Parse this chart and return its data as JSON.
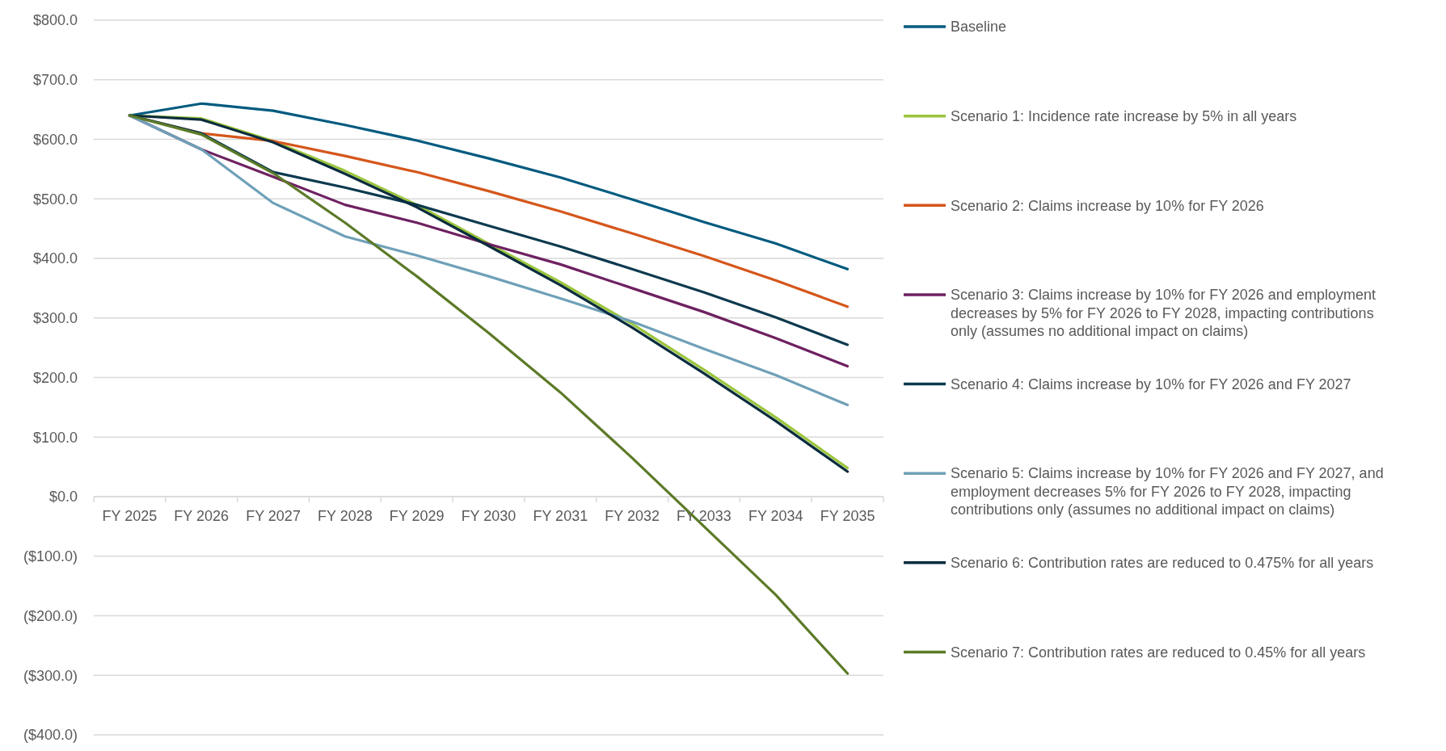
{
  "chart_data": {
    "type": "line",
    "categories": [
      "FY 2025",
      "FY 2026",
      "FY 2027",
      "FY 2028",
      "FY 2029",
      "FY 2030",
      "FY 2031",
      "FY 2032",
      "FY 2033",
      "FY 2034",
      "FY 2035"
    ],
    "series": [
      {
        "name": "Baseline",
        "color": "#005a7f",
        "values": [
          640,
          660,
          648,
          624,
          598,
          568,
          536,
          499,
          461,
          425,
          382
        ]
      },
      {
        "name": "Scenario 1: Incidence rate increase by 5% in all years",
        "color": "#9bc53d",
        "values": [
          640,
          635,
          597,
          547,
          490,
          425,
          360,
          290,
          213,
          133,
          48
        ]
      },
      {
        "name": "Scenario 2: Claims increase by 10% for FY 2026",
        "color": "#d5561b",
        "values": [
          640,
          610,
          597,
          572,
          545,
          513,
          479,
          442,
          404,
          363,
          319
        ]
      },
      {
        "name": "Scenario 3: Claims increase by 10% for FY 2026 and employment decreases by 5% for FY 2026 to FY 2028, impacting contributions only (assumes no additional impact on claims)",
        "color": "#6e2160",
        "values": [
          640,
          583,
          537,
          490,
          460,
          424,
          390,
          350,
          310,
          266,
          219
        ]
      },
      {
        "name": "Scenario 4: Claims increase by 10% for FY 2026 and FY 2027",
        "color": "#0d3a4f",
        "values": [
          640,
          610,
          545,
          519,
          490,
          455,
          420,
          382,
          343,
          301,
          255
        ]
      },
      {
        "name": "Scenario 5: Claims increase by 10% for FY 2026 and FY 2027, and employment decreases 5% for FY 2026 to FY 2028, impacting contributions only (assumes no additional impact on claims)",
        "color": "#6fa0b8",
        "values": [
          640,
          583,
          493,
          437,
          405,
          370,
          333,
          294,
          248,
          204,
          154
        ]
      },
      {
        "name": "Scenario 6: Contribution rates are reduced to 0.475% for all years",
        "color": "#0a2c3e",
        "values": [
          640,
          633,
          595,
          542,
          486,
          421,
          355,
          284,
          207,
          127,
          42
        ]
      },
      {
        "name": "Scenario 7: Contribution rates are reduced to 0.45% for all years",
        "color": "#5c7a27",
        "values": [
          640,
          608,
          543,
          460,
          370,
          275,
          175,
          65,
          -50,
          -165,
          -297
        ]
      }
    ],
    "ylim": [
      -400,
      800
    ],
    "yticks": [
      {
        "value": -400,
        "label": "($400.0)"
      },
      {
        "value": -300,
        "label": "($300.0)"
      },
      {
        "value": -200,
        "label": "($200.0)"
      },
      {
        "value": -100,
        "label": "($100.0)"
      },
      {
        "value": 0,
        "label": "$0.0"
      },
      {
        "value": 100,
        "label": "$100.0"
      },
      {
        "value": 200,
        "label": "$200.0"
      },
      {
        "value": 300,
        "label": "$300.0"
      },
      {
        "value": 400,
        "label": "$400.0"
      },
      {
        "value": 500,
        "label": "$500.0"
      },
      {
        "value": 600,
        "label": "$600.0"
      },
      {
        "value": 700,
        "label": "$700.0"
      },
      {
        "value": 800,
        "label": "$800.0"
      }
    ],
    "grid": "y",
    "legend": "right",
    "line_style": "solid"
  }
}
